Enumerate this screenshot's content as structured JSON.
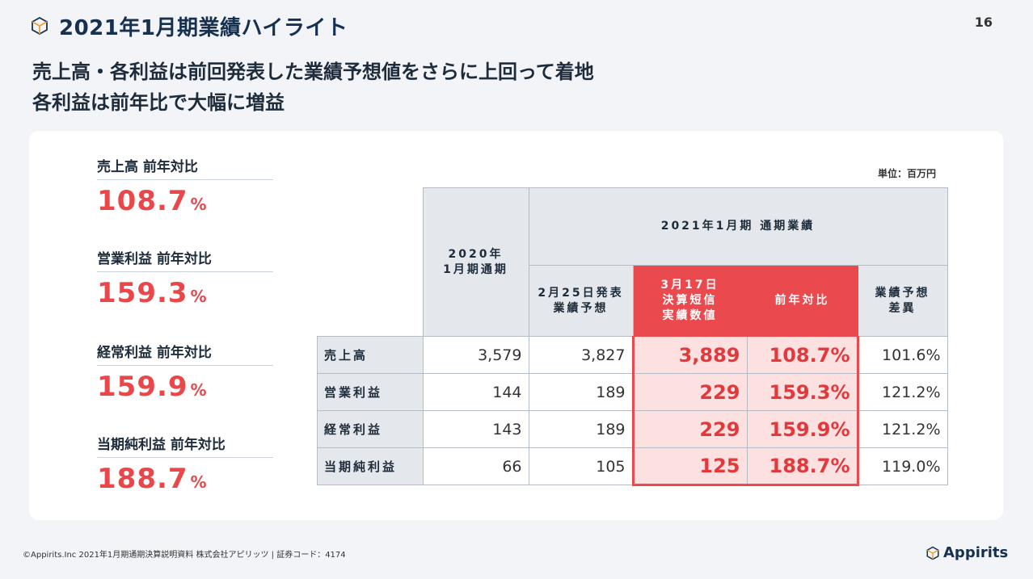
{
  "header": {
    "title": "2021年1月期業績ハイライト",
    "page": "16"
  },
  "lead": {
    "line1": "売上高・各利益は前回発表した業績予想値をさらに上回って着地",
    "line2": "各利益は前年比で大幅に増益"
  },
  "kpis": [
    {
      "label": "売上高 前年対比",
      "value": "108.7",
      "unit": "%"
    },
    {
      "label": "営業利益 前年対比",
      "value": "159.3",
      "unit": "%"
    },
    {
      "label": "経常利益 前年対比",
      "value": "159.9",
      "unit": "%"
    },
    {
      "label": "当期純利益 前年対比",
      "value": "188.7",
      "unit": "%"
    }
  ],
  "table": {
    "unit": "単位：百万円",
    "prev_header_l1": "2020年",
    "prev_header_l2": "1月期通期",
    "group_header": "2021年1月期 通期業績",
    "forecast_l1": "2月25日発表",
    "forecast_l2": "業績予想",
    "actual_l1": "3月17日",
    "actual_l2": "決算短信",
    "actual_l3": "実績数値",
    "yoy": "前年対比",
    "diff_l1": "業績予想",
    "diff_l2": "差異",
    "rows": [
      {
        "label": "売上高",
        "prev": "3,579",
        "forecast": "3,827",
        "actual": "3,889",
        "yoy": "108.7%",
        "diff": "101.6%"
      },
      {
        "label": "営業利益",
        "prev": "144",
        "forecast": "189",
        "actual": "229",
        "yoy": "159.3%",
        "diff": "121.2%"
      },
      {
        "label": "経常利益",
        "prev": "143",
        "forecast": "189",
        "actual": "229",
        "yoy": "159.9%",
        "diff": "121.2%"
      },
      {
        "label": "当期純利益",
        "prev": "66",
        "forecast": "105",
        "actual": "125",
        "yoy": "188.7%",
        "diff": "119.0%"
      }
    ]
  },
  "footer": {
    "text": "©Appirits.Inc 2021年1月期通期決算説明資料 株式会社アピリッツ | 証券コード：4174",
    "brand": "Appirits"
  },
  "colors": {
    "accent": "#e9474a",
    "navy": "#16304f",
    "highlight_bg": "#fde1e1"
  }
}
